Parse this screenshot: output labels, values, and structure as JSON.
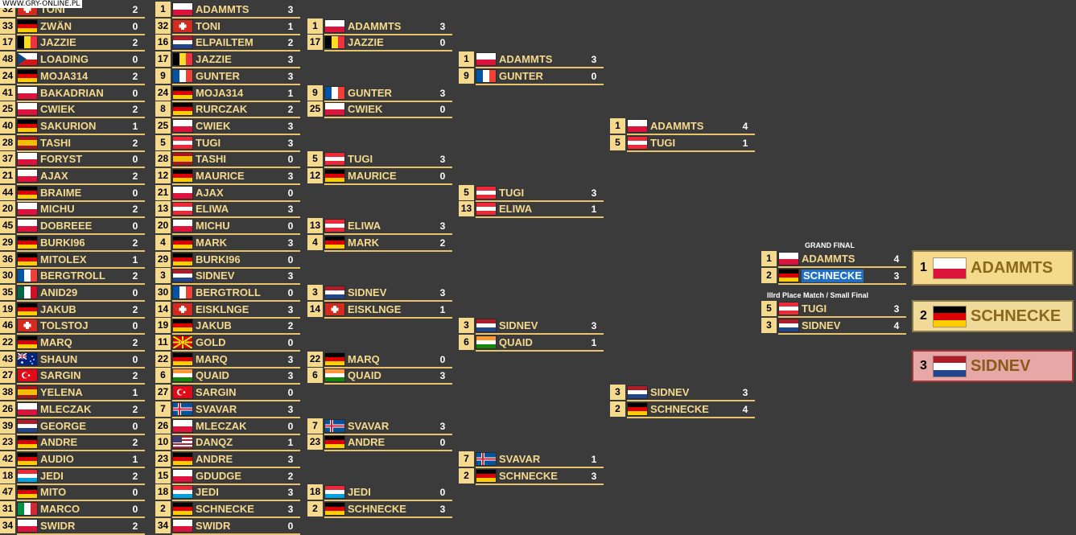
{
  "watermark": "WWW.GRY-ONLINE.PL",
  "colors": {
    "background": "#3b3b3b",
    "gold": "#f5d98c",
    "line": "#e9c36c",
    "first": "#f5d98c",
    "second": "#f0da9a",
    "third": "#e6a7a7"
  },
  "rounds": [
    {
      "entries": [
        {
          "seed": "32",
          "name": "TONI",
          "score": "2",
          "flag": "switzerland"
        },
        {
          "seed": "33",
          "name": "ZWÄN",
          "score": "0",
          "flag": "germany"
        },
        {
          "seed": "17",
          "name": "JAZZIE",
          "score": "2",
          "flag": "belgium"
        },
        {
          "seed": "48",
          "name": "LOADING",
          "score": "0",
          "flag": "czech"
        },
        {
          "seed": "24",
          "name": "MOJA314",
          "score": "2",
          "flag": "germany"
        },
        {
          "seed": "41",
          "name": "BAKADRIAN",
          "score": "0",
          "flag": "poland"
        },
        {
          "seed": "25",
          "name": "CWIEK",
          "score": "2",
          "flag": "poland"
        },
        {
          "seed": "40",
          "name": "SAKURION",
          "score": "1",
          "flag": "germany"
        },
        {
          "seed": "28",
          "name": "TASHI",
          "score": "2",
          "flag": "spain"
        },
        {
          "seed": "37",
          "name": "FORYST",
          "score": "0",
          "flag": "poland"
        },
        {
          "seed": "21",
          "name": "AJAX",
          "score": "2",
          "flag": "poland"
        },
        {
          "seed": "44",
          "name": "BRAIME",
          "score": "0",
          "flag": "germany"
        },
        {
          "seed": "20",
          "name": "MICHU",
          "score": "2",
          "flag": "poland"
        },
        {
          "seed": "45",
          "name": "DOBREEE",
          "score": "0",
          "flag": "poland"
        },
        {
          "seed": "29",
          "name": "BURKI96",
          "score": "2",
          "flag": "germany"
        },
        {
          "seed": "36",
          "name": "MITOLEX",
          "score": "1",
          "flag": "germany"
        },
        {
          "seed": "30",
          "name": "BERGTROLL",
          "score": "2",
          "flag": "france"
        },
        {
          "seed": "35",
          "name": "ANID29",
          "score": "0",
          "flag": "mexico"
        },
        {
          "seed": "19",
          "name": "JAKUB",
          "score": "2",
          "flag": "germany"
        },
        {
          "seed": "46",
          "name": "TOLSTOJ",
          "score": "0",
          "flag": "switzerland"
        },
        {
          "seed": "22",
          "name": "MARQ",
          "score": "2",
          "flag": "germany"
        },
        {
          "seed": "43",
          "name": "SHAUN",
          "score": "0",
          "flag": "australia"
        },
        {
          "seed": "27",
          "name": "SARGIN",
          "score": "2",
          "flag": "turkey"
        },
        {
          "seed": "38",
          "name": "YELENA",
          "score": "1",
          "flag": "spain"
        },
        {
          "seed": "26",
          "name": "MLECZAK",
          "score": "2",
          "flag": "poland"
        },
        {
          "seed": "39",
          "name": "GEORGE",
          "score": "0",
          "flag": "netherlands"
        },
        {
          "seed": "23",
          "name": "ANDRE",
          "score": "2",
          "flag": "germany"
        },
        {
          "seed": "42",
          "name": "AUDIO",
          "score": "1",
          "flag": "germany"
        },
        {
          "seed": "18",
          "name": "JEDI",
          "score": "2",
          "flag": "luxembourg"
        },
        {
          "seed": "47",
          "name": "MITO",
          "score": "0",
          "flag": "germany"
        },
        {
          "seed": "31",
          "name": "MARCO",
          "score": "0",
          "flag": "italy"
        },
        {
          "seed": "34",
          "name": "SWIDR",
          "score": "2",
          "flag": "poland"
        }
      ]
    },
    {
      "entries": [
        {
          "seed": "1",
          "name": "ADAMMTS",
          "score": "3",
          "flag": "poland"
        },
        {
          "seed": "32",
          "name": "TONI",
          "score": "1",
          "flag": "switzerland"
        },
        {
          "seed": "16",
          "name": "ELPAILTEM",
          "score": "2",
          "flag": "netherlands"
        },
        {
          "seed": "17",
          "name": "JAZZIE",
          "score": "3",
          "flag": "belgium"
        },
        {
          "seed": "9",
          "name": "GUNTER",
          "score": "3",
          "flag": "france"
        },
        {
          "seed": "24",
          "name": "MOJA314",
          "score": "1",
          "flag": "germany"
        },
        {
          "seed": "8",
          "name": "RURCZAK",
          "score": "2",
          "flag": "germany"
        },
        {
          "seed": "25",
          "name": "CWIEK",
          "score": "3",
          "flag": "poland"
        },
        {
          "seed": "5",
          "name": "TUGI",
          "score": "3",
          "flag": "austria"
        },
        {
          "seed": "28",
          "name": "TASHI",
          "score": "0",
          "flag": "spain"
        },
        {
          "seed": "12",
          "name": "MAURICE",
          "score": "3",
          "flag": "germany"
        },
        {
          "seed": "21",
          "name": "AJAX",
          "score": "0",
          "flag": "poland"
        },
        {
          "seed": "13",
          "name": "ELIWA",
          "score": "3",
          "flag": "austria"
        },
        {
          "seed": "20",
          "name": "MICHU",
          "score": "0",
          "flag": "poland"
        },
        {
          "seed": "4",
          "name": "MARK",
          "score": "3",
          "flag": "germany"
        },
        {
          "seed": "29",
          "name": "BURKI96",
          "score": "0",
          "flag": "germany"
        },
        {
          "seed": "3",
          "name": "SIDNEV",
          "score": "3",
          "flag": "netherlands"
        },
        {
          "seed": "30",
          "name": "BERGTROLL",
          "score": "0",
          "flag": "france"
        },
        {
          "seed": "14",
          "name": "EISKLNGE",
          "score": "3",
          "flag": "switzerland"
        },
        {
          "seed": "19",
          "name": "JAKUB",
          "score": "2",
          "flag": "germany"
        },
        {
          "seed": "11",
          "name": "GOLD",
          "score": "0",
          "flag": "macedonia"
        },
        {
          "seed": "22",
          "name": "MARQ",
          "score": "3",
          "flag": "germany"
        },
        {
          "seed": "6",
          "name": "QUAID",
          "score": "3",
          "flag": "india"
        },
        {
          "seed": "27",
          "name": "SARGIN",
          "score": "0",
          "flag": "turkey"
        },
        {
          "seed": "7",
          "name": "SVAVAR",
          "score": "3",
          "flag": "iceland"
        },
        {
          "seed": "26",
          "name": "MLECZAK",
          "score": "0",
          "flag": "poland"
        },
        {
          "seed": "10",
          "name": "DANQZ",
          "score": "1",
          "flag": "usa"
        },
        {
          "seed": "23",
          "name": "ANDRE",
          "score": "3",
          "flag": "germany"
        },
        {
          "seed": "15",
          "name": "GDUDGE",
          "score": "2",
          "flag": "poland"
        },
        {
          "seed": "18",
          "name": "JEDI",
          "score": "3",
          "flag": "luxembourg"
        },
        {
          "seed": "2",
          "name": "SCHNECKE",
          "score": "3",
          "flag": "germany"
        },
        {
          "seed": "34",
          "name": "SWIDR",
          "score": "0",
          "flag": "poland"
        }
      ]
    },
    {
      "entries": [
        {
          "seed": "1",
          "name": "ADAMMTS",
          "score": "3",
          "flag": "poland"
        },
        {
          "seed": "17",
          "name": "JAZZIE",
          "score": "0",
          "flag": "belgium"
        },
        {
          "seed": "9",
          "name": "GUNTER",
          "score": "3",
          "flag": "france"
        },
        {
          "seed": "25",
          "name": "CWIEK",
          "score": "0",
          "flag": "poland"
        },
        {
          "seed": "5",
          "name": "TUGI",
          "score": "3",
          "flag": "austria"
        },
        {
          "seed": "12",
          "name": "MAURICE",
          "score": "0",
          "flag": "germany"
        },
        {
          "seed": "13",
          "name": "ELIWA",
          "score": "3",
          "flag": "austria"
        },
        {
          "seed": "4",
          "name": "MARK",
          "score": "2",
          "flag": "germany"
        },
        {
          "seed": "3",
          "name": "SIDNEV",
          "score": "3",
          "flag": "netherlands"
        },
        {
          "seed": "14",
          "name": "EISKLNGE",
          "score": "1",
          "flag": "switzerland"
        },
        {
          "seed": "22",
          "name": "MARQ",
          "score": "0",
          "flag": "germany"
        },
        {
          "seed": "6",
          "name": "QUAID",
          "score": "3",
          "flag": "india"
        },
        {
          "seed": "7",
          "name": "SVAVAR",
          "score": "3",
          "flag": "iceland"
        },
        {
          "seed": "23",
          "name": "ANDRE",
          "score": "0",
          "flag": "germany"
        },
        {
          "seed": "18",
          "name": "JEDI",
          "score": "0",
          "flag": "luxembourg"
        },
        {
          "seed": "2",
          "name": "SCHNECKE",
          "score": "3",
          "flag": "germany"
        }
      ]
    },
    {
      "entries": [
        {
          "seed": "1",
          "name": "ADAMMTS",
          "score": "3",
          "flag": "poland"
        },
        {
          "seed": "9",
          "name": "GUNTER",
          "score": "0",
          "flag": "france"
        },
        {
          "seed": "5",
          "name": "TUGI",
          "score": "3",
          "flag": "austria"
        },
        {
          "seed": "13",
          "name": "ELIWA",
          "score": "1",
          "flag": "austria"
        },
        {
          "seed": "3",
          "name": "SIDNEV",
          "score": "3",
          "flag": "netherlands"
        },
        {
          "seed": "6",
          "name": "QUAID",
          "score": "1",
          "flag": "india"
        },
        {
          "seed": "7",
          "name": "SVAVAR",
          "score": "1",
          "flag": "iceland"
        },
        {
          "seed": "2",
          "name": "SCHNECKE",
          "score": "3",
          "flag": "germany"
        }
      ]
    },
    {
      "entries": [
        {
          "seed": "1",
          "name": "ADAMMTS",
          "score": "4",
          "flag": "poland"
        },
        {
          "seed": "5",
          "name": "TUGI",
          "score": "1",
          "flag": "austria"
        },
        {
          "seed": "3",
          "name": "SIDNEV",
          "score": "3",
          "flag": "netherlands"
        },
        {
          "seed": "2",
          "name": "SCHNECKE",
          "score": "4",
          "flag": "germany"
        }
      ]
    }
  ],
  "grand_final": {
    "label": "GRAND FINAL",
    "entries": [
      {
        "seed": "1",
        "name": "ADAMMTS",
        "score": "4",
        "flag": "poland"
      },
      {
        "seed": "2",
        "name": "SCHNECKE",
        "score": "3",
        "flag": "germany",
        "highlight": true
      }
    ]
  },
  "third_place": {
    "label": "IIIrd Place Match / Small Final",
    "entries": [
      {
        "seed": "5",
        "name": "TUGI",
        "score": "3",
        "flag": "austria"
      },
      {
        "seed": "3",
        "name": "SIDNEV",
        "score": "4",
        "flag": "netherlands"
      }
    ]
  },
  "podium": [
    {
      "place": "1",
      "name": "ADAMMTS",
      "flag": "poland",
      "bg": "#f5d98c",
      "color": "#8a6a1a"
    },
    {
      "place": "2",
      "name": "SCHNECKE",
      "flag": "germany",
      "bg": "#f0da9a",
      "color": "#8a6a1a"
    },
    {
      "place": "3",
      "name": "SIDNEV",
      "flag": "netherlands",
      "bg": "#e6a7a7",
      "color": "#8a5a1a"
    }
  ]
}
